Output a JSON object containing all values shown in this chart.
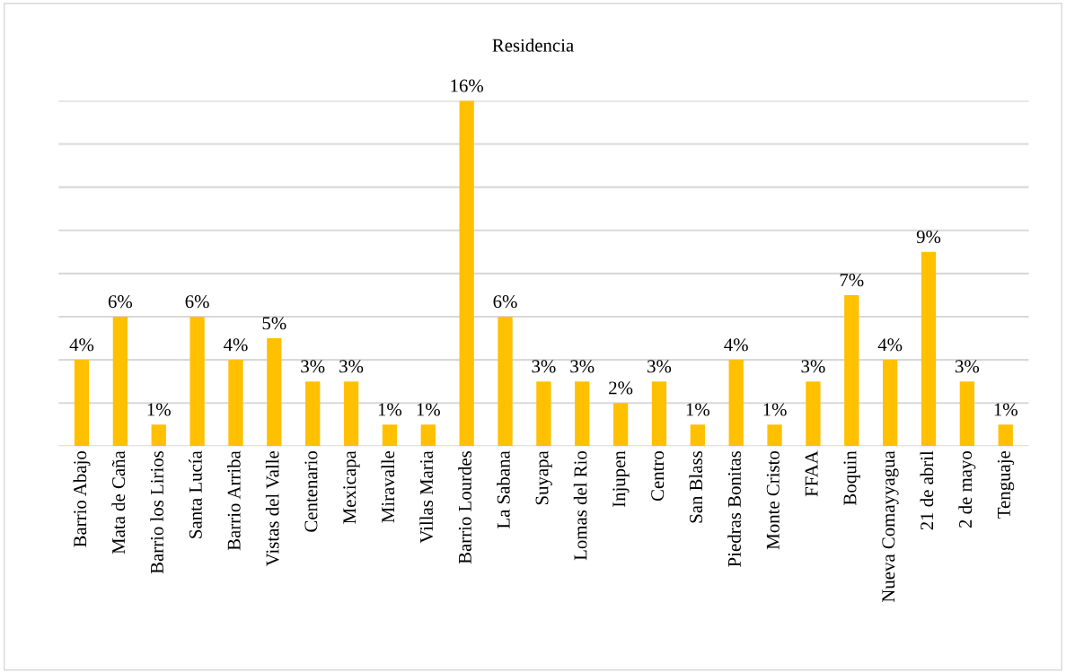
{
  "chart_data": {
    "type": "bar",
    "title": "Residencia",
    "categories": [
      "Barrio Abajo",
      "Mata de Caña",
      "Barrio los Lirios",
      "Santa Lucía",
      "Barrio Arriba",
      "Vistas del Valle",
      "Centenario",
      "Mexicapa",
      "Miravalle",
      "Villas Maria",
      "Barrio Lourdes",
      "La Sabana",
      "Suyapa",
      "Lomas del Rio",
      "Injupen",
      "Centro",
      "San Blass",
      "Piedras Bonitas",
      "Monte Cristo",
      "FFAA",
      "Boquin",
      "Nueva Comayyagua",
      "21 de abril",
      "2 de mayo",
      "Tenguaje"
    ],
    "values": [
      4,
      6,
      1,
      6,
      4,
      5,
      3,
      3,
      1,
      1,
      16,
      6,
      3,
      3,
      2,
      3,
      1,
      4,
      1,
      3,
      7,
      4,
      9,
      3,
      1
    ],
    "value_labels": [
      "4%",
      "6%",
      "1%",
      "6%",
      "4%",
      "5%",
      "3%",
      "3%",
      "1%",
      "1%",
      "16%",
      "6%",
      "3%",
      "3%",
      "2%",
      "3%",
      "1%",
      "4%",
      "1%",
      "3%",
      "7%",
      "4%",
      "9%",
      "3%",
      "1%"
    ],
    "color": "#ffc000",
    "ylim": [
      0,
      16
    ],
    "yticks": [
      {
        "value": 0,
        "label": null
      },
      {
        "value": 2,
        "label": null
      },
      {
        "value": 4,
        "label": null
      },
      {
        "value": 6,
        "label": null
      },
      {
        "value": 8,
        "label": null
      },
      {
        "value": 10,
        "label": null
      },
      {
        "value": 12,
        "label": null
      },
      {
        "value": 14,
        "label": null
      },
      {
        "value": 16,
        "label": null
      }
    ],
    "grid": "y",
    "legend": false
  }
}
